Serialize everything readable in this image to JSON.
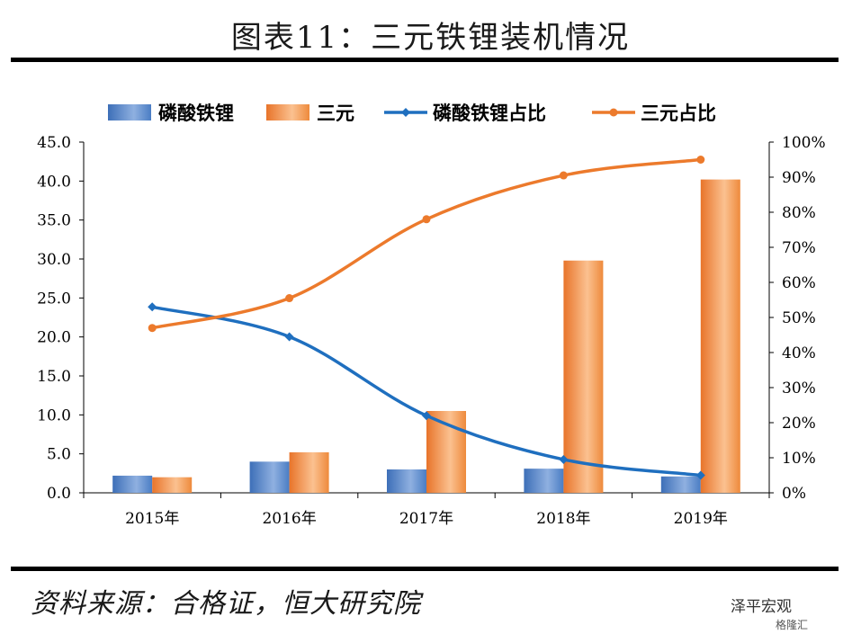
{
  "page": {
    "title": "图表11：三元铁锂装机情况",
    "source": "资料来源：合格证，恒大研究院",
    "watermark": "泽平宏观",
    "watermark_sub": "格隆汇"
  },
  "colors": {
    "lfp_bar": "#4a7dc4",
    "ternary_bar": "#ee8a3c",
    "lfp_line": "#1f6fbf",
    "ternary_line": "#ec7a2c"
  },
  "chart_data": {
    "type": "bar",
    "categories": [
      "2015年",
      "2016年",
      "2017年",
      "2018年",
      "2019年"
    ],
    "series": [
      {
        "name": "磷酸铁锂",
        "kind": "bar",
        "axis": "left",
        "values": [
          2.2,
          4.0,
          3.0,
          3.1,
          2.1
        ]
      },
      {
        "name": "三元",
        "kind": "bar",
        "axis": "left",
        "values": [
          2.0,
          5.2,
          10.5,
          29.8,
          40.2
        ]
      },
      {
        "name": "磷酸铁锂占比",
        "kind": "line",
        "axis": "right",
        "marker": "diamond",
        "values": [
          53,
          44.5,
          22,
          9.5,
          5
        ]
      },
      {
        "name": "三元占比",
        "kind": "line",
        "axis": "right",
        "marker": "circle",
        "values": [
          47,
          55.5,
          78,
          90.5,
          95
        ]
      }
    ],
    "left_axis": {
      "ylim": [
        0,
        45
      ],
      "ticks": [
        "0.0",
        "5.0",
        "10.0",
        "15.0",
        "20.0",
        "25.0",
        "30.0",
        "35.0",
        "40.0",
        "45.0"
      ]
    },
    "right_axis": {
      "ylim": [
        0,
        100
      ],
      "ticks": [
        "0%",
        "10%",
        "20%",
        "30%",
        "40%",
        "50%",
        "60%",
        "70%",
        "80%",
        "90%",
        "100%"
      ]
    },
    "legend_position": "top",
    "grid": false
  }
}
